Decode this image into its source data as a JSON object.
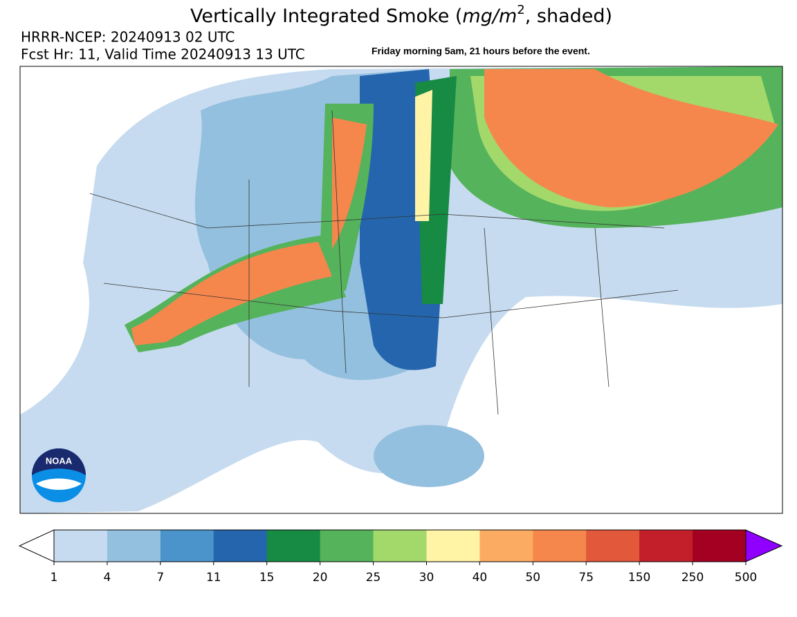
{
  "title": {
    "prefix": "Vertically Integrated Smoke (",
    "unit": "mg/m",
    "exponent": "2",
    "suffix": ", shaded)"
  },
  "model_line": "HRRR-NCEP: 20240913 02 UTC",
  "forecast_line": "Fcst Hr: 11, Valid Time 20240913 13 UTC",
  "annotation": "Friday morning 5am, 21 hours before the event.",
  "logo_text": "NOAA",
  "colorbar": {
    "ticks": [
      1,
      4,
      7,
      11,
      15,
      20,
      25,
      30,
      40,
      50,
      75,
      150,
      250,
      500
    ],
    "colors": [
      "#c6dbef",
      "#94c0df",
      "#4a94cb",
      "#2465ae",
      "#178a44",
      "#55b35b",
      "#a3d86b",
      "#fff3a6",
      "#fcab62",
      "#f5874d",
      "#e1583a",
      "#c21f2b",
      "#a30022"
    ],
    "under_color": "#ffffff",
    "over_color": "#8f00ff"
  }
}
